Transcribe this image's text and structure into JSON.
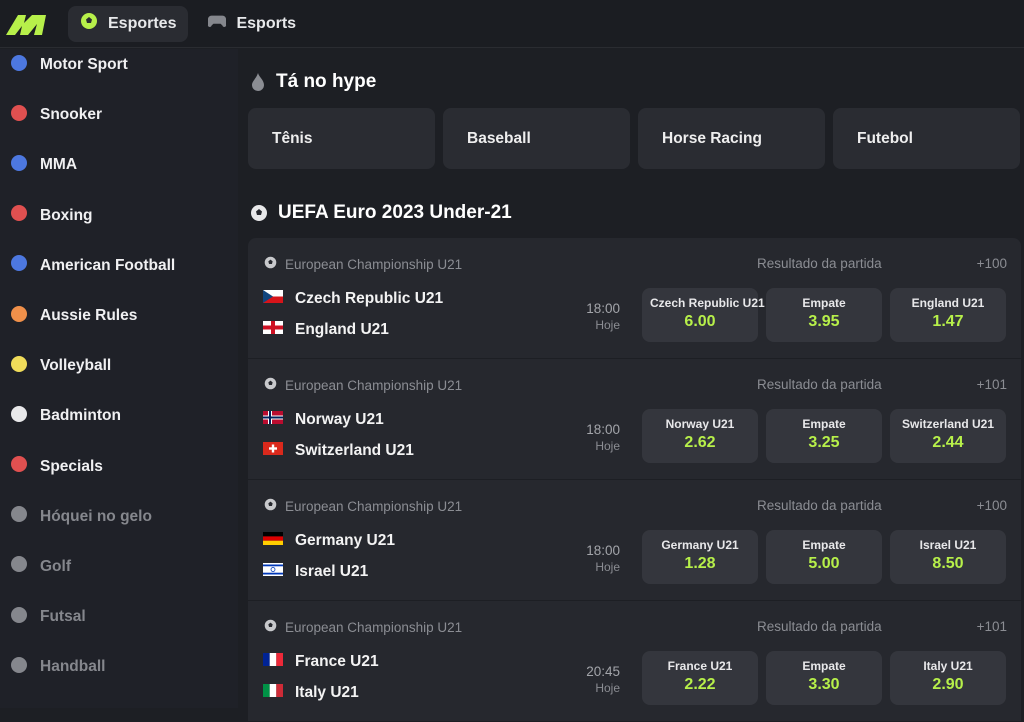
{
  "colors": {
    "accent": "#b7f04a"
  },
  "topbar": {
    "tabs": [
      {
        "label": "Esportes",
        "icon": "soccer-ball-icon",
        "active": true
      },
      {
        "label": "Esports",
        "icon": "gamepad-icon",
        "active": false
      }
    ]
  },
  "sidebar": {
    "items": [
      {
        "label": "Motor Sport",
        "icon": "helmet-icon",
        "color": "#4d78e0",
        "dim": false
      },
      {
        "label": "Snooker",
        "icon": "snooker-balls-icon",
        "color": "#e05050",
        "dim": false
      },
      {
        "label": "MMA",
        "icon": "fist-icon",
        "color": "#4d78e0",
        "dim": false
      },
      {
        "label": "Boxing",
        "icon": "boxing-glove-icon",
        "color": "#e05050",
        "dim": false
      },
      {
        "label": "American Football",
        "icon": "football-helmet-icon",
        "color": "#4d78e0",
        "dim": false
      },
      {
        "label": "Aussie Rules",
        "icon": "aussie-ball-icon",
        "color": "#f0904a",
        "dim": false
      },
      {
        "label": "Volleyball",
        "icon": "volleyball-icon",
        "color": "#f0dc5a",
        "dim": false
      },
      {
        "label": "Badminton",
        "icon": "shuttlecock-icon",
        "color": "#e8e8ea",
        "dim": false
      },
      {
        "label": "Specials",
        "icon": "star-burst-icon",
        "color": "#e05050",
        "dim": false
      },
      {
        "label": "Hóquei no gelo",
        "icon": "hockey-stick-icon",
        "color": "#85878d",
        "dim": true
      },
      {
        "label": "Golf",
        "icon": "golf-ball-icon",
        "color": "#85878d",
        "dim": true
      },
      {
        "label": "Futsal",
        "icon": "futsal-ball-icon",
        "color": "#85878d",
        "dim": true
      },
      {
        "label": "Handball",
        "icon": "handball-icon",
        "color": "#85878d",
        "dim": true
      }
    ]
  },
  "hype": {
    "title": "Tá no hype",
    "items": [
      {
        "label": "Tênis",
        "icon": "tennis-ball-icon",
        "color": "#a6e07a"
      },
      {
        "label": "Baseball",
        "icon": "baseball-icon",
        "color": "#e8e8ea"
      },
      {
        "label": "Horse Racing",
        "icon": "horse-icon",
        "color": "#e8e8ea"
      },
      {
        "label": "Futebol",
        "icon": "soccer-ball-icon",
        "color": "#e8e8ea"
      }
    ]
  },
  "competition": {
    "title": "UEFA Euro 2023 Under-21",
    "matches": [
      {
        "league": "European Championship U21",
        "market": "Resultado da partida",
        "more": "+100",
        "home": "Czech Republic U21",
        "away": "England U21",
        "home_flag": "cz",
        "away_flag": "en",
        "time": "18:00",
        "day": "Hoje",
        "odds": [
          {
            "name": "Czech Republic U21",
            "value": "6.00"
          },
          {
            "name": "Empate",
            "value": "3.95"
          },
          {
            "name": "England U21",
            "value": "1.47"
          }
        ]
      },
      {
        "league": "European Championship U21",
        "market": "Resultado da partida",
        "more": "+101",
        "home": "Norway U21",
        "away": "Switzerland U21",
        "home_flag": "no",
        "away_flag": "ch",
        "time": "18:00",
        "day": "Hoje",
        "odds": [
          {
            "name": "Norway U21",
            "value": "2.62"
          },
          {
            "name": "Empate",
            "value": "3.25"
          },
          {
            "name": "Switzerland U21",
            "value": "2.44"
          }
        ]
      },
      {
        "league": "European Championship U21",
        "market": "Resultado da partida",
        "more": "+100",
        "home": "Germany U21",
        "away": "Israel U21",
        "home_flag": "de",
        "away_flag": "il",
        "time": "18:00",
        "day": "Hoje",
        "odds": [
          {
            "name": "Germany U21",
            "value": "1.28"
          },
          {
            "name": "Empate",
            "value": "5.00"
          },
          {
            "name": "Israel U21",
            "value": "8.50"
          }
        ]
      },
      {
        "league": "European Championship U21",
        "market": "Resultado da partida",
        "more": "+101",
        "home": "France U21",
        "away": "Italy U21",
        "home_flag": "fr",
        "away_flag": "it",
        "time": "20:45",
        "day": "Hoje",
        "odds": [
          {
            "name": "France U21",
            "value": "2.22"
          },
          {
            "name": "Empate",
            "value": "3.30"
          },
          {
            "name": "Italy U21",
            "value": "2.90"
          }
        ]
      }
    ]
  }
}
